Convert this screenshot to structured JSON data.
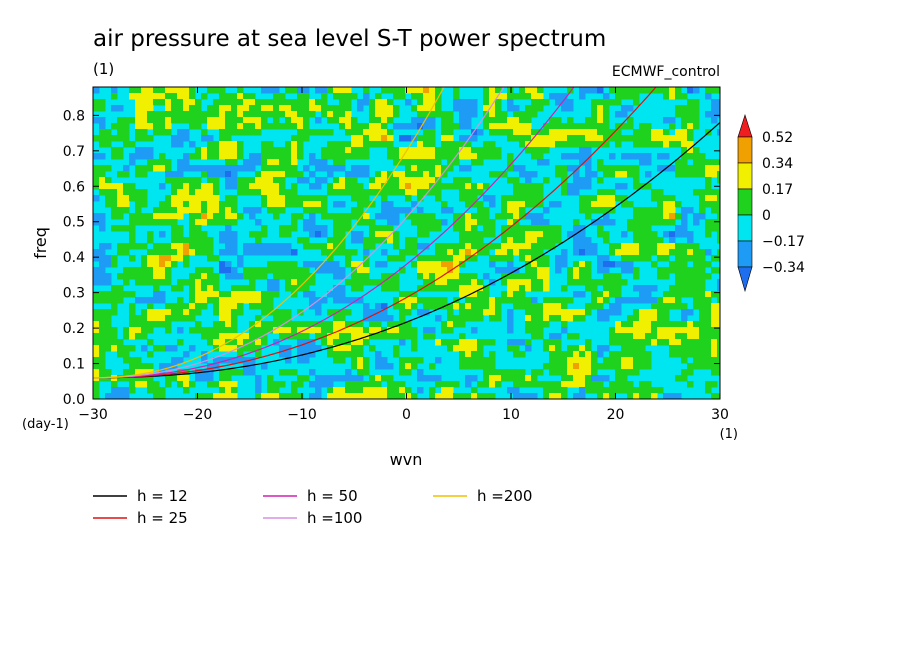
{
  "chart_data": {
    "type": "heatmap",
    "title": "air pressure at sea level S-T power spectrum",
    "units": "(1)",
    "source_label": "ECMWF_control",
    "xlabel": "wvn",
    "ylabel": "freq",
    "x_units": "(1)",
    "y_units": "(day-1)",
    "xlim": [
      -30,
      30
    ],
    "ylim": [
      0,
      0.88
    ],
    "xticks": [
      -30,
      -20,
      -10,
      0,
      10,
      20,
      30
    ],
    "yticks": [
      0.0,
      0.1,
      0.2,
      0.3,
      0.4,
      0.5,
      0.6,
      0.7,
      0.8
    ],
    "ytick_labels": [
      "0.0",
      "0.1",
      "0.2",
      "0.3",
      "0.4",
      "0.5",
      "0.6",
      "0.7",
      "0.8"
    ],
    "colorbar": {
      "levels": [
        -0.34,
        -0.17,
        0,
        0.17,
        0.34,
        0.52
      ],
      "labels": [
        "-0.34",
        "-0.17",
        "0",
        "0.17",
        "0.34",
        "0.52"
      ],
      "colors": [
        "#1e6ef0",
        "#1e9bf5",
        "#00e6f0",
        "#1ed21e",
        "#f0f000",
        "#f0a000",
        "#f01e1e"
      ]
    },
    "dispersion_curves": [
      {
        "name": "h = 12",
        "h": 12,
        "color": "#000000"
      },
      {
        "name": "h = 25",
        "h": 25,
        "color": "#e01010"
      },
      {
        "name": "h = 50",
        "h": 50,
        "color": "#d020b0"
      },
      {
        "name": "h =100",
        "h": 100,
        "color": "#d890e0"
      },
      {
        "name": "h =200",
        "h": 200,
        "color": "#f0c000"
      }
    ]
  }
}
